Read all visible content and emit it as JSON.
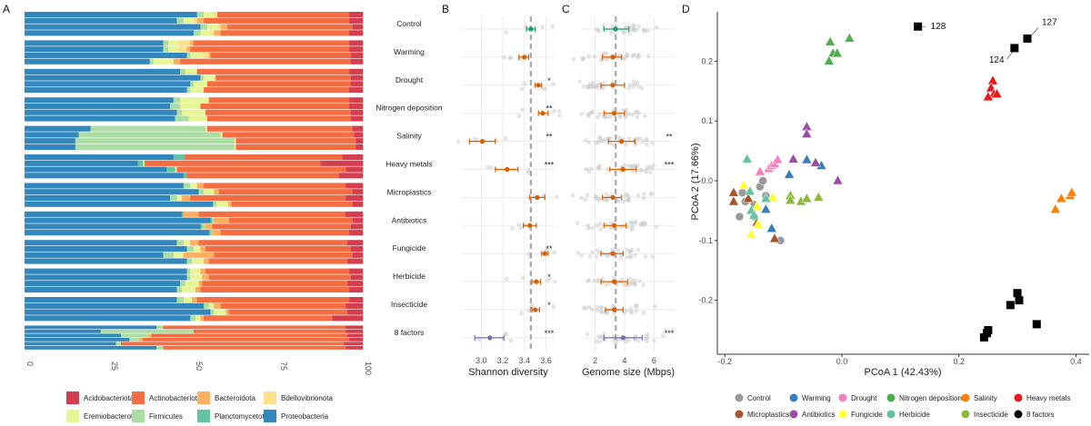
{
  "panels": {
    "a": "A",
    "b": "B",
    "c": "C",
    "d": "D"
  },
  "chart_data": [
    {
      "type": "bar",
      "subtype": "stacked-horizontal",
      "panel": "A",
      "xlim": [
        0,
        100
      ],
      "xticks": [
        "0",
        "25",
        "50",
        "75",
        "100"
      ],
      "stack_order": [
        "Proteobacteria",
        "Planctomycetota",
        "Firmicutes",
        "Eremiobacterota",
        "Bdellovibrionota",
        "Bacteroidota",
        "Actinobacteriota",
        "Acidobacteriota"
      ],
      "legend": [
        {
          "name": "Acidobacteriota",
          "color": "#D53E4F"
        },
        {
          "name": "Actinobacteriota",
          "color": "#F46D43"
        },
        {
          "name": "Bacteroidota",
          "color": "#FDAE61"
        },
        {
          "name": "Bdellovibrionota",
          "color": "#FEE08B"
        },
        {
          "name": "Eremiobacterota",
          "color": "#E6F598"
        },
        {
          "name": "Firmicutes",
          "color": "#ABDDA4"
        },
        {
          "name": "Planctomycetota",
          "color": "#66C2A5"
        },
        {
          "name": "Proteobacteria",
          "color": "#3288BD"
        }
      ],
      "legend_position": "bottom",
      "groups": [
        [
          [
            51,
            0,
            2,
            3,
            1,
            0,
            39,
            4
          ],
          [
            45,
            0,
            2,
            3,
            1,
            2,
            43,
            4
          ],
          [
            52,
            0,
            2,
            3,
            1,
            2,
            37,
            3
          ],
          [
            50,
            0,
            2,
            3,
            1,
            2,
            38,
            4
          ]
        ],
        [
          [
            41,
            0,
            1.5,
            3,
            3.5,
            1,
            46,
            4
          ],
          [
            41,
            0,
            1.5,
            3,
            2.5,
            1,
            47,
            4
          ],
          [
            48,
            0,
            1,
            4,
            1.5,
            0.5,
            41.5,
            3.5
          ],
          [
            37,
            0,
            1,
            6,
            0,
            2,
            50.5,
            3.5
          ]
        ],
        [
          [
            46,
            0,
            1.5,
            3.5,
            0,
            0,
            45,
            4
          ],
          [
            52,
            0,
            1,
            3,
            0.5,
            0,
            40,
            3.5
          ],
          [
            49,
            0,
            1,
            4,
            0,
            0,
            42.5,
            3.5
          ],
          [
            48,
            0,
            1,
            4,
            0,
            0,
            43,
            4
          ]
        ],
        [
          [
            44,
            0,
            2,
            8.5,
            0,
            0,
            41.5,
            4
          ],
          [
            43,
            0,
            3,
            6,
            0,
            0,
            44,
            4
          ],
          [
            45,
            0,
            1.5,
            7,
            0,
            0,
            43,
            3.5
          ],
          [
            44.5,
            0,
            4,
            5.5,
            0,
            0,
            42.5,
            3.5
          ]
        ],
        [
          [
            19.5,
            0,
            34,
            0.5,
            0,
            0,
            43,
            3
          ],
          [
            16,
            0,
            42,
            0.5,
            0,
            0,
            39,
            2.5
          ],
          [
            15,
            0,
            47,
            0.5,
            0,
            0,
            35.5,
            2
          ],
          [
            15,
            0,
            47,
            0.5,
            0,
            0,
            35.5,
            2
          ]
        ],
        [
          [
            44,
            3.5,
            0,
            0,
            0,
            0,
            46.5,
            6
          ],
          [
            33.5,
            1.5,
            0,
            0.5,
            0,
            0,
            52,
            12.5
          ],
          [
            42,
            2.5,
            0,
            0.5,
            0,
            0,
            50,
            5
          ],
          [
            47,
            1,
            0,
            0,
            0,
            0,
            45,
            7
          ]
        ],
        [
          [
            47,
            0,
            2,
            2,
            0,
            2,
            42,
            5
          ],
          [
            51.5,
            0,
            1.5,
            3,
            0,
            1.5,
            39.5,
            3
          ],
          [
            43,
            0,
            2,
            1.5,
            0,
            2.5,
            46,
            5
          ],
          [
            56,
            0,
            1,
            3.5,
            0,
            1,
            36,
            3
          ]
        ],
        [
          [
            46,
            0.5,
            0,
            0,
            0,
            4.5,
            43,
            5
          ],
          [
            55,
            0.5,
            0.5,
            0,
            0,
            4.5,
            36.5,
            3
          ],
          [
            52,
            0.5,
            1,
            0,
            0,
            2,
            41,
            3.5
          ],
          [
            54.5,
            0.5,
            0.5,
            0,
            0,
            2.5,
            38,
            4
          ]
        ],
        [
          [
            45,
            0,
            2,
            2,
            0,
            2.5,
            44,
            4.5
          ],
          [
            48,
            0,
            2,
            2,
            0,
            1.5,
            43,
            3.5
          ],
          [
            41,
            0,
            3,
            3,
            0,
            9,
            41,
            3
          ],
          [
            48,
            0,
            1.5,
            3.5,
            0,
            1.5,
            41,
            4.5
          ]
        ],
        [
          [
            48,
            0,
            1,
            3,
            0,
            1.5,
            42.5,
            4
          ],
          [
            48,
            0,
            1,
            3.5,
            0,
            2,
            42,
            3.5
          ],
          [
            46,
            0,
            1.5,
            4,
            0,
            1,
            43,
            4.5
          ],
          [
            45,
            0,
            1.5,
            4,
            0,
            1.5,
            44,
            4
          ]
        ],
        [
          [
            45,
            0,
            2,
            2.5,
            0,
            1.5,
            45,
            4
          ],
          [
            53,
            0,
            1.5,
            1.5,
            0,
            2,
            37,
            5
          ],
          [
            55,
            0,
            1,
            3.5,
            0,
            1,
            35,
            4.5
          ],
          [
            49,
            0,
            1.5,
            1.5,
            0,
            1,
            38,
            9
          ]
        ],
        [
          [
            39,
            0,
            2,
            0,
            0,
            0,
            54,
            5
          ],
          [
            22.5,
            0,
            27.5,
            0,
            0,
            0,
            45,
            5
          ],
          [
            28.5,
            0,
            8,
            0,
            0,
            1,
            58,
            4.5
          ],
          [
            31,
            0,
            3,
            0,
            0,
            1,
            61,
            4
          ],
          [
            27,
            0,
            1.5,
            0,
            0,
            0,
            66,
            5.5
          ],
          [
            39,
            0,
            2,
            0,
            0,
            0,
            54,
            5
          ]
        ]
      ]
    },
    {
      "type": "scatter",
      "subtype": "point-errorbar",
      "panel": "B",
      "xlabel": "Shannon diversity",
      "xlim": [
        2.82,
        3.68
      ],
      "xticks": [
        "3.0",
        "3.2",
        "3.4",
        "3.6"
      ],
      "reference_line": 3.46,
      "categories": [
        "Control",
        "Warming",
        "Drought",
        "Nitrogen deposition",
        "Salinity",
        "Heavy metals",
        "Microplastics",
        "Antibiotics",
        "Fungicide",
        "Herbicide",
        "Insecticide",
        "8 factors"
      ],
      "mean": [
        3.46,
        3.4,
        3.53,
        3.57,
        3.01,
        3.24,
        3.52,
        3.45,
        3.59,
        3.51,
        3.5,
        3.08
      ],
      "low": [
        3.42,
        3.35,
        3.5,
        3.53,
        2.89,
        3.13,
        3.45,
        3.39,
        3.56,
        3.47,
        3.47,
        2.94
      ],
      "high": [
        3.5,
        3.44,
        3.56,
        3.62,
        3.13,
        3.34,
        3.59,
        3.51,
        3.62,
        3.55,
        3.54,
        3.21
      ],
      "significance": [
        "",
        "",
        "*",
        "**",
        "**",
        "***",
        "",
        "",
        "**",
        "*",
        "*",
        "***"
      ]
    },
    {
      "type": "scatter",
      "subtype": "point-errorbar",
      "panel": "C",
      "xlabel": "Genome size (Mbps)",
      "xlim": [
        1.1,
        7.4
      ],
      "xticks": [
        "2",
        "4",
        "6"
      ],
      "reference_line": 3.4,
      "mean": [
        3.4,
        3.2,
        3.2,
        3.3,
        3.8,
        3.9,
        3.2,
        3.3,
        3.2,
        3.3,
        3.3,
        3.9
      ],
      "low": [
        2.6,
        2.5,
        2.4,
        2.6,
        2.9,
        3.0,
        2.5,
        2.6,
        2.4,
        2.4,
        2.7,
        2.6
      ],
      "high": [
        4.3,
        3.8,
        4.0,
        4.0,
        4.7,
        4.8,
        3.8,
        4.1,
        3.9,
        4.2,
        3.9,
        5.2
      ],
      "significance": [
        "",
        "",
        "",
        "",
        "**",
        "***",
        "",
        "",
        "",
        "",
        "",
        "***"
      ]
    },
    {
      "type": "scatter",
      "panel": "D",
      "xlabel": "PCoA 1 (42.43%)",
      "ylabel": "PCoA 2 (17.66%)",
      "xlim": [
        -0.215,
        0.42
      ],
      "ylim": [
        -0.29,
        0.285
      ],
      "xticks": [
        "-0.2",
        "0.0",
        "0.2",
        "0.4"
      ],
      "yticks": [
        "-0.2",
        "-0.1",
        "0.0",
        "0.1",
        "0.2"
      ],
      "legend_position": "bottom",
      "series": [
        {
          "name": "Control",
          "color": "#999999",
          "shape": "circle",
          "points": [
            [
              -0.17,
              -0.02
            ],
            [
              -0.165,
              -0.035
            ],
            [
              -0.15,
              -0.04
            ],
            [
              -0.14,
              -0.01
            ],
            [
              -0.135,
              0.0
            ],
            [
              -0.13,
              -0.025
            ],
            [
              -0.175,
              -0.06
            ],
            [
              -0.15,
              -0.06
            ],
            [
              -0.105,
              -0.1
            ]
          ]
        },
        {
          "name": "Warming",
          "color": "#377EB8",
          "shape": "triangle",
          "points": [
            [
              -0.09,
              0.01
            ],
            [
              -0.06,
              0.035
            ],
            [
              -0.035,
              0.025
            ],
            [
              -0.13,
              -0.048
            ],
            [
              -0.12,
              -0.08
            ]
          ]
        },
        {
          "name": "Drought",
          "color": "#F781BF",
          "shape": "triangle",
          "points": [
            [
              -0.14,
              0.015
            ],
            [
              -0.125,
              0.02
            ],
            [
              -0.12,
              0.025
            ],
            [
              -0.115,
              0.028
            ],
            [
              -0.11,
              0.035
            ]
          ]
        },
        {
          "name": "Nitrogen deposition",
          "color": "#4DAF4A",
          "shape": "triangle",
          "points": [
            [
              -0.02,
              0.232
            ],
            [
              -0.015,
              0.213
            ],
            [
              -0.008,
              0.213
            ],
            [
              -0.022,
              0.2
            ],
            [
              0.013,
              0.238
            ]
          ]
        },
        {
          "name": "Salinity",
          "color": "#FF7F00",
          "shape": "triangle",
          "points": [
            [
              0.365,
              -0.048
            ],
            [
              0.375,
              -0.03
            ],
            [
              0.39,
              -0.025
            ],
            [
              0.393,
              -0.02
            ]
          ]
        },
        {
          "name": "Heavy metals",
          "color": "#E41A1C",
          "shape": "triangle",
          "points": [
            [
              0.258,
              0.167
            ],
            [
              0.255,
              0.155
            ],
            [
              0.26,
              0.145
            ],
            [
              0.25,
              0.14
            ],
            [
              0.265,
              0.145
            ]
          ]
        },
        {
          "name": "Microplastics",
          "color": "#A65628",
          "shape": "triangle",
          "points": [
            [
              -0.185,
              -0.02
            ],
            [
              -0.185,
              -0.035
            ],
            [
              -0.16,
              -0.03
            ],
            [
              -0.145,
              -0.07
            ],
            [
              -0.115,
              -0.097
            ]
          ]
        },
        {
          "name": "Antibiotics",
          "color": "#984EA3",
          "shape": "triangle",
          "points": [
            [
              -0.06,
              0.09
            ],
            [
              -0.06,
              0.078
            ],
            [
              -0.083,
              0.036
            ],
            [
              -0.045,
              0.03
            ],
            [
              -0.007,
              0.0
            ]
          ]
        },
        {
          "name": "Fungicide",
          "color": "#FFFF33",
          "shape": "triangle",
          "points": [
            [
              -0.168,
              -0.008
            ],
            [
              -0.145,
              -0.043
            ],
            [
              -0.118,
              -0.028
            ],
            [
              -0.143,
              -0.073
            ],
            [
              -0.155,
              -0.09
            ]
          ]
        },
        {
          "name": "Herbicide",
          "color": "#66C2A5",
          "shape": "triangle",
          "points": [
            [
              -0.162,
              0.036
            ],
            [
              -0.157,
              -0.018
            ],
            [
              -0.13,
              -0.03
            ],
            [
              -0.155,
              -0.05
            ],
            [
              -0.15,
              -0.058
            ]
          ]
        },
        {
          "name": "Insecticide",
          "color": "#8CB83C",
          "shape": "triangle",
          "points": [
            [
              -0.088,
              -0.025
            ],
            [
              -0.088,
              -0.033
            ],
            [
              -0.07,
              -0.035
            ],
            [
              -0.06,
              -0.03
            ],
            [
              -0.04,
              -0.028
            ]
          ]
        },
        {
          "name": "8 factors",
          "color": "#000000",
          "shape": "square",
          "points": [
            [
              0.13,
              0.258
            ],
            [
              0.295,
              0.222
            ],
            [
              0.317,
              0.238
            ],
            [
              0.3,
              -0.188
            ],
            [
              0.303,
              -0.2
            ],
            [
              0.288,
              -0.208
            ],
            [
              0.333,
              -0.24
            ],
            [
              0.25,
              -0.25
            ],
            [
              0.243,
              -0.262
            ],
            [
              0.248,
              -0.255
            ]
          ]
        }
      ],
      "annotations": [
        {
          "text": "128",
          "x": 0.13,
          "y": 0.258
        },
        {
          "text": "124",
          "x": 0.295,
          "y": 0.222
        },
        {
          "text": "127",
          "x": 0.317,
          "y": 0.238
        }
      ]
    }
  ]
}
